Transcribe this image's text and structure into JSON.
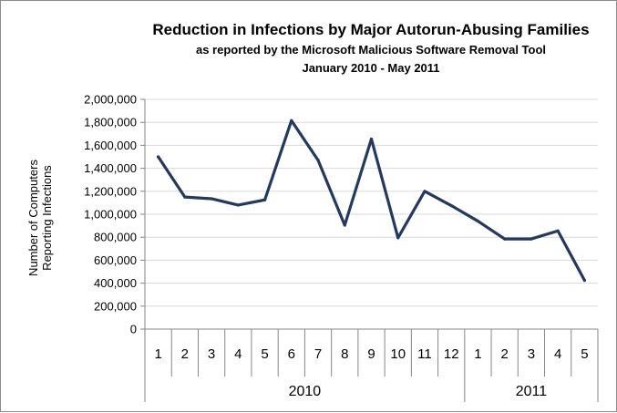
{
  "chart_data": {
    "type": "line",
    "title": "Reduction in Infections by Major Autorun-Abusing Families",
    "subtitle_line1": "as reported by the Microsoft Malicious Software Removal Tool",
    "subtitle_line2": "January 2010 - May 2011",
    "ylabel_line1": "Number of Computers",
    "ylabel_line2": "Reporting Infections",
    "xlabel": "",
    "categories": [
      "1",
      "2",
      "3",
      "4",
      "5",
      "6",
      "7",
      "8",
      "9",
      "10",
      "11",
      "12",
      "1",
      "2",
      "3",
      "4",
      "5"
    ],
    "groups": [
      {
        "label": "2010",
        "count": 12
      },
      {
        "label": "2011",
        "count": 5
      }
    ],
    "series": [
      {
        "name": "Infections",
        "values": [
          1500000,
          1150000,
          1135000,
          1080000,
          1125000,
          1815000,
          1470000,
          905000,
          1655000,
          795000,
          1200000,
          1075000,
          940000,
          785000,
          785000,
          855000,
          425000
        ]
      }
    ],
    "ylim": [
      0,
      2000000
    ],
    "yticks": [
      0,
      200000,
      400000,
      600000,
      800000,
      1000000,
      1200000,
      1400000,
      1600000,
      1800000,
      2000000
    ],
    "ytick_labels": [
      "0",
      "200,000",
      "400,000",
      "600,000",
      "800,000",
      "1,000,000",
      "1,200,000",
      "1,400,000",
      "1,600,000",
      "1,800,000",
      "2,000,000"
    ],
    "grid": true,
    "legend": "none",
    "colors": {
      "line": "#233a5e",
      "grid": "#d9d9d9",
      "axis": "#868686"
    }
  }
}
